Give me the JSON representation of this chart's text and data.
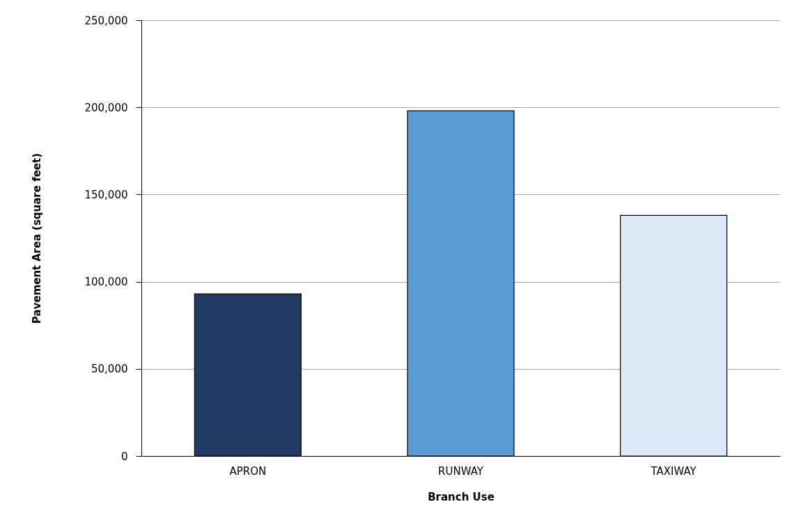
{
  "chart_data": {
    "type": "bar",
    "xlabel": "Branch Use",
    "ylabel": "Pavement Area (square feet)",
    "categories": [
      "APRON",
      "RUNWAY",
      "TAXIWAY"
    ],
    "values": [
      93000,
      198000,
      138000
    ],
    "colors": [
      "#223a63",
      "#5b9bd5",
      "#dde9f5"
    ],
    "ylim": [
      0,
      250000
    ],
    "yticks": [
      {
        "value": 0,
        "label": "0"
      },
      {
        "value": 50000,
        "label": "50,000"
      },
      {
        "value": 100000,
        "label": "100,000"
      },
      {
        "value": 150000,
        "label": "150,000"
      },
      {
        "value": 200000,
        "label": "200,000"
      },
      {
        "value": 250000,
        "label": "250,000"
      }
    ],
    "grid": "y"
  }
}
